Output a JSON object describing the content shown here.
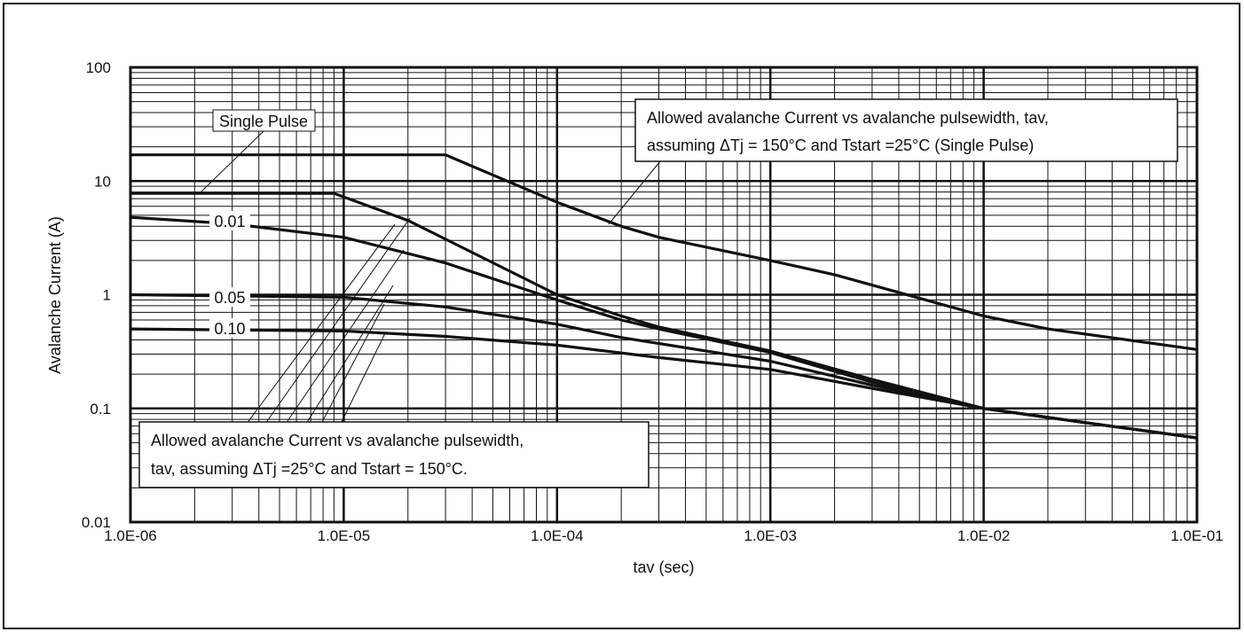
{
  "chart_data": {
    "type": "line",
    "title": "",
    "xlabel": "tav (sec)",
    "ylabel": "Avalanche Current (A)",
    "x_scale": "log",
    "y_scale": "log",
    "xlim": [
      1e-06,
      0.1
    ],
    "ylim": [
      0.01,
      100
    ],
    "grid": true,
    "x_ticks": [
      "1.0E-06",
      "1.0E-05",
      "1.0E-04",
      "1.0E-03",
      "1.0E-02",
      "1.0E-01"
    ],
    "y_ticks": [
      "0.01",
      "0.1",
      "1",
      "10",
      "100"
    ],
    "series": [
      {
        "name": "Single Pulse",
        "label": "Single Pulse",
        "x": [
          1e-06,
          3e-05,
          0.0001,
          0.0002,
          0.0003,
          0.001,
          0.002,
          0.01,
          0.02,
          0.1
        ],
        "y": [
          17,
          17,
          6.5,
          4.0,
          3.2,
          2.0,
          1.5,
          0.65,
          0.5,
          0.33
        ]
      },
      {
        "name": "Single Pulse",
        "label": "",
        "x": [
          1e-06,
          9e-06,
          2e-05,
          0.0001,
          0.0002,
          0.0003,
          0.001,
          0.003,
          0.01,
          0.03,
          0.1
        ],
        "y": [
          7.8,
          7.8,
          4.5,
          1.0,
          0.65,
          0.52,
          0.32,
          0.18,
          0.1,
          0.075,
          0.055
        ]
      },
      {
        "name": "0.01",
        "label": "0.01",
        "x": [
          1e-06,
          3e-06,
          1e-05,
          3e-05,
          0.0001,
          0.0002,
          0.0003,
          0.001,
          0.003,
          0.01,
          0.03,
          0.1
        ],
        "y": [
          4.8,
          4.2,
          3.2,
          1.9,
          0.9,
          0.6,
          0.5,
          0.31,
          0.17,
          0.1,
          0.075,
          0.055
        ]
      },
      {
        "name": "0.05",
        "label": "0.05",
        "x": [
          1e-06,
          1e-05,
          3e-05,
          0.0001,
          0.0002,
          0.001,
          0.003,
          0.01,
          0.03,
          0.1
        ],
        "y": [
          1.0,
          0.95,
          0.78,
          0.55,
          0.42,
          0.26,
          0.16,
          0.1,
          0.075,
          0.055
        ]
      },
      {
        "name": "0.10",
        "label": "0.10",
        "x": [
          1e-06,
          1e-05,
          3e-05,
          0.0001,
          0.0003,
          0.001,
          0.003,
          0.01,
          0.03,
          0.1
        ],
        "y": [
          0.5,
          0.48,
          0.43,
          0.36,
          0.28,
          0.22,
          0.15,
          0.1,
          0.075,
          0.055
        ]
      }
    ],
    "annotations": [
      {
        "lines": [
          "Allowed avalanche Current vs avalanche pulsewidth, tav,",
          "assuming ΔTj = 150°C and Tstart =25°C (Single Pulse)"
        ]
      },
      {
        "lines": [
          "Allowed avalanche Current vs avalanche pulsewidth,",
          "tav,  assuming ΔTj =25°C and Tstart = 150°C."
        ]
      }
    ]
  }
}
